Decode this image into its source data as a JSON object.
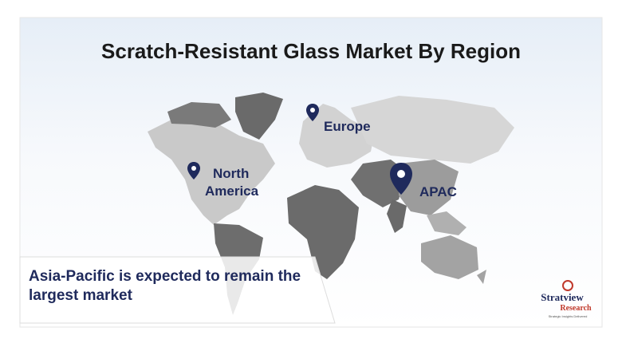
{
  "title": "Scratch-Resistant Glass Market By Region",
  "regions": [
    {
      "lines": [
        "Europe"
      ]
    },
    {
      "lines": [
        "North",
        "America"
      ]
    },
    {
      "lines": [
        "APAC"
      ]
    }
  ],
  "caption": {
    "lines": [
      "Asia-Pacific is expected to remain the",
      "largest market"
    ]
  },
  "logo": {
    "name": "Stratview",
    "sub": "Research",
    "tagline": "Strategic Insights Delivered"
  }
}
